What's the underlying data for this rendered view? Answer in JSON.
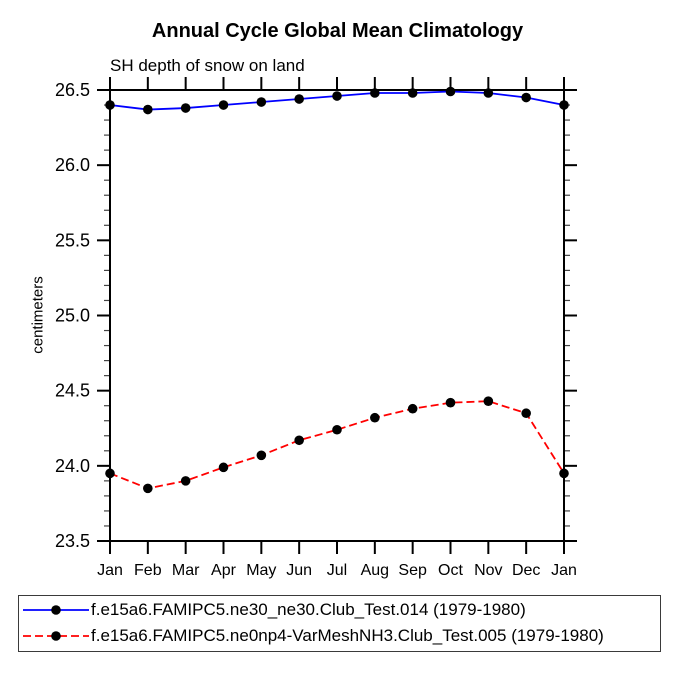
{
  "chart_data": {
    "type": "line",
    "title": "Annual Cycle Global Mean Climatology",
    "subtitle": "SH depth of snow on land",
    "ylabel": "centimeters",
    "xlabel": "",
    "categories": [
      "Jan",
      "Feb",
      "Mar",
      "Apr",
      "May",
      "Jun",
      "Jul",
      "Aug",
      "Sep",
      "Oct",
      "Nov",
      "Dec",
      "Jan"
    ],
    "ylim": [
      23.5,
      26.5
    ],
    "y_major_step": 0.5,
    "y_minor_step": 0.1,
    "grid": false,
    "legend_position": "bottom",
    "axis_color": "#000000",
    "marker_color": "#000000",
    "series": [
      {
        "name": "f.e15a6.FAMIPC5.ne30_ne30.Club_Test.014 (1979-1980)",
        "color": "#0000ff",
        "line_style": "solid",
        "marker": "circle",
        "values": [
          26.4,
          26.37,
          26.38,
          26.4,
          26.42,
          26.44,
          26.46,
          26.48,
          26.48,
          26.49,
          26.48,
          26.45,
          26.4
        ]
      },
      {
        "name": "f.e15a6.FAMIPC5.ne0np4-VarMeshNH3.Club_Test.005 (1979-1980)",
        "color": "#ff0000",
        "line_style": "dashed",
        "marker": "circle",
        "values": [
          23.95,
          23.85,
          23.9,
          23.99,
          24.07,
          24.17,
          24.24,
          24.32,
          24.38,
          24.42,
          24.43,
          24.35,
          23.95
        ]
      }
    ]
  }
}
